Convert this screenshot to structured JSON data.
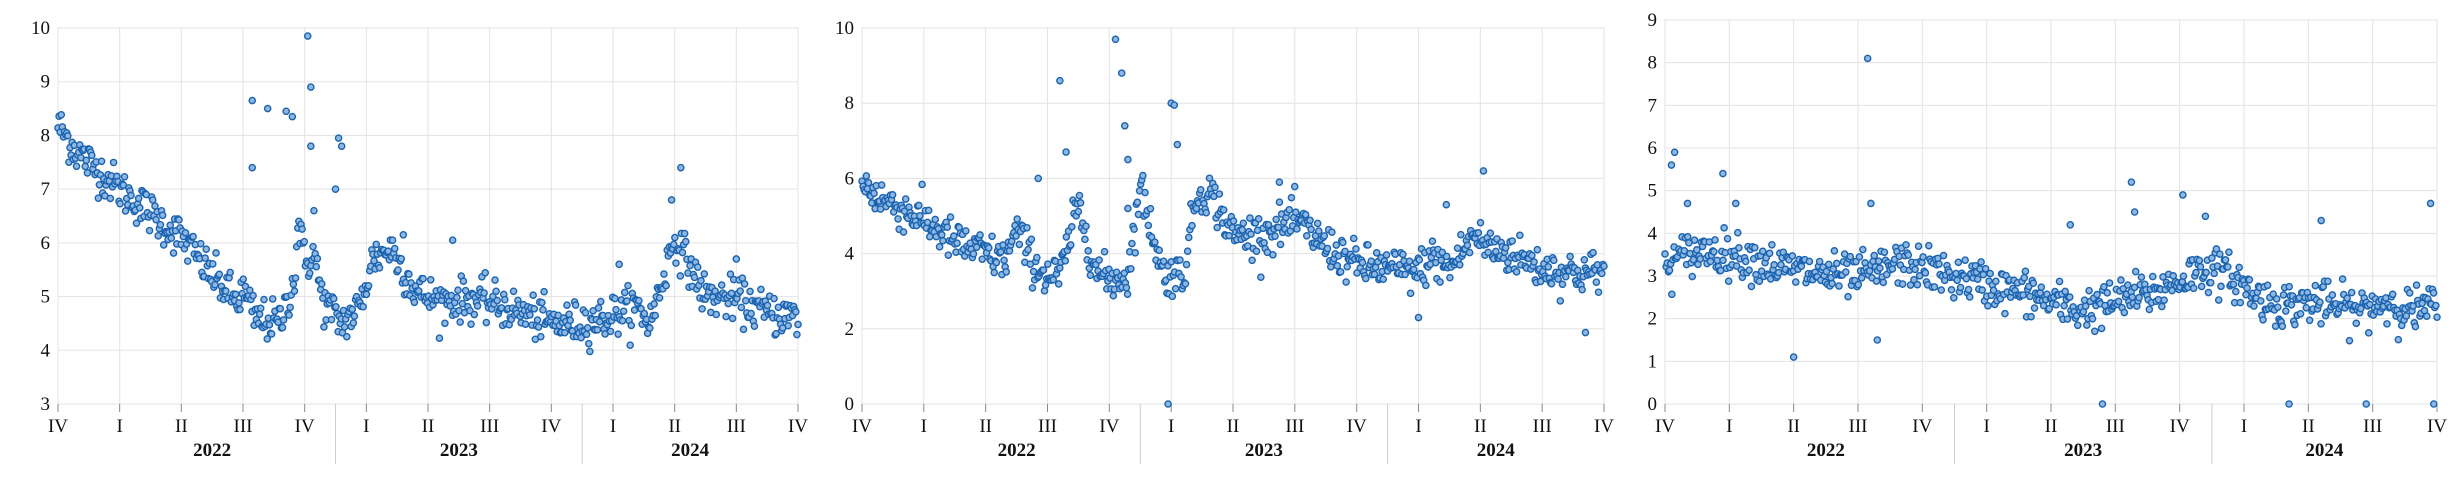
{
  "colors": {
    "marker": "#1a63b0",
    "grid": "#e3e3e3",
    "axis": "#bdbdbd"
  },
  "chart_data": [
    {
      "type": "scatter",
      "title": "",
      "xlabel": "",
      "ylabel": "",
      "ylim": [
        3,
        10
      ],
      "yticks": [
        "3",
        "4",
        "5",
        "6",
        "7",
        "8",
        "9",
        "10"
      ],
      "quarter_labels": [
        "IV",
        "I",
        "II",
        "III",
        "IV",
        "I",
        "II",
        "III",
        "IV",
        "I",
        "II",
        "III",
        "IV"
      ],
      "year_labels": [
        "2022",
        "2023",
        "2024"
      ],
      "grid": true,
      "x_range_quarters": [
        0,
        12
      ],
      "series": [
        {
          "x_quarters": [
            0,
            0.3,
            1.0,
            2.0,
            2.5,
            2.9,
            3.0,
            3.2,
            3.6,
            3.85,
            3.9,
            4.0,
            4.15,
            4.3,
            4.6,
            4.9,
            5.1,
            5.4,
            5.8,
            6.2,
            6.6,
            7.0,
            7.5,
            8.0,
            8.4,
            8.9,
            9.1,
            9.4,
            9.6,
            10.0,
            10.5,
            11.0,
            11.5,
            12.0
          ],
          "y_values": [
            8.2,
            7.7,
            7.0,
            6.1,
            5.4,
            4.9,
            5.1,
            4.6,
            4.5,
            5.4,
            6.5,
            5.6,
            5.8,
            4.9,
            4.5,
            4.8,
            5.7,
            5.9,
            5.1,
            4.9,
            4.95,
            4.9,
            4.7,
            4.5,
            4.5,
            4.6,
            4.7,
            4.8,
            4.5,
            6.1,
            5.0,
            4.95,
            4.7,
            4.6
          ],
          "outliers": [
            [
              3.15,
              8.65
            ],
            [
              3.15,
              7.4
            ],
            [
              3.4,
              8.5
            ],
            [
              3.7,
              8.45
            ],
            [
              3.8,
              8.35
            ],
            [
              4.05,
              9.85
            ],
            [
              4.1,
              8.9
            ],
            [
              4.1,
              7.8
            ],
            [
              4.15,
              6.6
            ],
            [
              4.5,
              7.0
            ],
            [
              4.55,
              7.95
            ],
            [
              4.6,
              7.8
            ],
            [
              5.6,
              6.15
            ],
            [
              6.4,
              6.05
            ],
            [
              9.1,
              5.6
            ],
            [
              10.1,
              7.4
            ],
            [
              9.95,
              6.8
            ],
            [
              11.0,
              5.7
            ]
          ]
        }
      ]
    },
    {
      "type": "scatter",
      "title": "",
      "xlabel": "",
      "ylabel": "",
      "ylim": [
        0,
        10
      ],
      "yticks": [
        "0",
        "2",
        "4",
        "6",
        "8",
        "10"
      ],
      "quarter_labels": [
        "IV",
        "I",
        "II",
        "III",
        "IV",
        "I",
        "II",
        "III",
        "IV",
        "I",
        "II",
        "III",
        "IV"
      ],
      "year_labels": [
        "2022",
        "2023",
        "2024"
      ],
      "grid": true,
      "x_range_quarters": [
        0,
        12
      ],
      "series": [
        {
          "x_quarters": [
            0,
            0.5,
            1.0,
            1.5,
            2.0,
            2.3,
            2.5,
            2.8,
            3.0,
            3.2,
            3.5,
            3.8,
            4.0,
            4.3,
            4.5,
            4.9,
            5.0,
            5.2,
            5.4,
            5.6,
            6.0,
            6.5,
            7.0,
            7.5,
            8.0,
            8.5,
            9.0,
            9.2,
            9.5,
            9.9,
            10.1,
            10.5,
            11.0,
            11.5,
            12.0
          ],
          "y_values": [
            5.8,
            5.3,
            4.9,
            4.3,
            4.0,
            3.8,
            4.6,
            3.7,
            3.4,
            3.4,
            5.3,
            3.5,
            3.3,
            3.4,
            5.8,
            3.3,
            3.5,
            3.4,
            5.5,
            5.7,
            4.5,
            4.5,
            4.9,
            4.2,
            3.7,
            3.6,
            3.5,
            3.9,
            3.6,
            4.5,
            4.2,
            4.0,
            3.6,
            3.5,
            3.5
          ],
          "outliers": [
            [
              2.85,
              6.0
            ],
            [
              3.2,
              8.6
            ],
            [
              3.3,
              6.7
            ],
            [
              4.1,
              9.7
            ],
            [
              4.2,
              8.8
            ],
            [
              4.25,
              7.4
            ],
            [
              4.3,
              6.5
            ],
            [
              4.3,
              5.2
            ],
            [
              4.95,
              0.0
            ],
            [
              5.0,
              8.0
            ],
            [
              5.05,
              7.95
            ],
            [
              5.1,
              6.9
            ],
            [
              6.75,
              5.9
            ],
            [
              9.0,
              2.3
            ],
            [
              9.45,
              5.3
            ],
            [
              10.05,
              6.2
            ],
            [
              11.7,
              1.9
            ]
          ]
        }
      ]
    },
    {
      "type": "scatter",
      "title": "",
      "xlabel": "",
      "ylabel": "",
      "ylim": [
        0,
        9
      ],
      "yticks": [
        "0",
        "1",
        "2",
        "3",
        "4",
        "5",
        "6",
        "7",
        "8",
        "9"
      ],
      "quarter_labels": [
        "IV",
        "I",
        "II",
        "III",
        "IV",
        "I",
        "II",
        "III",
        "IV",
        "I",
        "II",
        "III",
        "IV"
      ],
      "year_labels": [
        "2022",
        "2023",
        "2024"
      ],
      "grid": true,
      "x_range_quarters": [
        0,
        12
      ],
      "series": [
        {
          "x_quarters": [
            0,
            0.3,
            0.7,
            1.0,
            1.4,
            1.8,
            2.2,
            2.6,
            3.0,
            3.3,
            3.6,
            4.0,
            4.4,
            4.8,
            5.2,
            5.6,
            6.0,
            6.4,
            6.8,
            7.2,
            7.6,
            8.0,
            8.4,
            8.8,
            9.2,
            9.6,
            10.0,
            10.4,
            10.8,
            11.2,
            11.6,
            12.0
          ],
          "y_values": [
            3.2,
            3.5,
            3.6,
            3.5,
            3.4,
            3.2,
            3.1,
            3.0,
            3.0,
            3.1,
            3.3,
            3.2,
            3.0,
            2.9,
            2.7,
            2.6,
            2.4,
            2.2,
            2.3,
            2.5,
            2.6,
            2.9,
            3.2,
            3.0,
            2.5,
            2.3,
            2.4,
            2.3,
            2.2,
            2.4,
            2.2,
            2.3
          ],
          "outliers": [
            [
              0.15,
              5.9
            ],
            [
              0.1,
              5.6
            ],
            [
              0.35,
              4.7
            ],
            [
              0.9,
              5.4
            ],
            [
              1.1,
              4.7
            ],
            [
              2.0,
              1.1
            ],
            [
              3.15,
              8.1
            ],
            [
              3.2,
              4.7
            ],
            [
              3.3,
              1.5
            ],
            [
              6.3,
              4.2
            ],
            [
              6.8,
              0.0
            ],
            [
              7.25,
              5.2
            ],
            [
              7.3,
              4.5
            ],
            [
              8.05,
              4.9
            ],
            [
              8.4,
              4.4
            ],
            [
              9.7,
              0.0
            ],
            [
              10.2,
              4.3
            ],
            [
              10.9,
              0.0
            ],
            [
              11.9,
              4.7
            ],
            [
              11.95,
              0.0
            ]
          ]
        }
      ]
    }
  ]
}
